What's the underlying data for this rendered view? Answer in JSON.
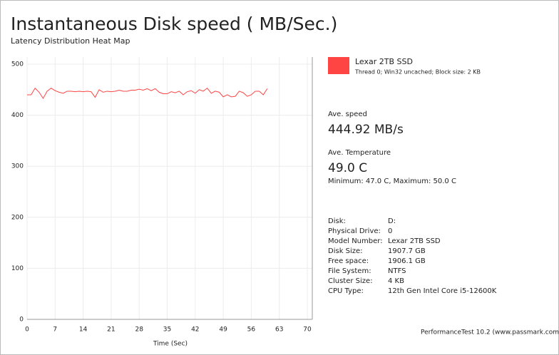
{
  "chart_data": {
    "type": "line",
    "title": "Instantaneous Disk speed ( MB/Sec.)",
    "subtitle": "Latency Distribution Heat Map",
    "x_label": "Time (Sec)",
    "x": [
      0,
      1,
      2,
      3,
      4,
      5,
      6,
      7,
      8,
      9,
      10,
      11,
      12,
      13,
      14,
      15,
      16,
      17,
      18,
      19,
      20,
      21,
      22,
      23,
      24,
      25,
      26,
      27,
      28,
      29,
      30,
      31,
      32,
      33,
      34,
      35,
      36,
      37,
      38,
      39,
      40,
      41,
      42,
      43,
      44,
      45,
      46,
      47,
      48,
      49,
      50,
      51,
      52,
      53,
      54,
      55,
      56,
      57,
      58,
      59,
      60
    ],
    "series": [
      {
        "name": "Lexar 2TB SSD",
        "color": "#ff4444",
        "values": [
          440,
          440,
          453,
          445,
          433,
          447,
          453,
          448,
          445,
          443,
          447,
          447,
          446,
          447,
          446,
          447,
          446,
          435,
          450,
          445,
          447,
          446,
          447,
          449,
          447,
          447,
          449,
          449,
          451,
          449,
          452,
          448,
          452,
          445,
          442,
          442,
          446,
          444,
          447,
          440,
          446,
          448,
          443,
          450,
          447,
          453,
          443,
          447,
          445,
          436,
          440,
          436,
          437,
          447,
          444,
          437,
          440,
          447,
          447,
          440,
          452
        ]
      }
    ],
    "xlim": [
      0,
      70
    ],
    "xticks": [
      0,
      7,
      14,
      21,
      28,
      35,
      42,
      49,
      56,
      63,
      70
    ],
    "ylim": [
      0,
      500
    ],
    "yticks": [
      0,
      100,
      200,
      300,
      400,
      500
    ],
    "grid": true
  },
  "panel": {
    "detail": "Thread 0; Win32 uncached; Block size: 2 KB",
    "speed_label": "Ave. speed",
    "speed_value": "444.92 MB/s",
    "temp_label": "Ave. Temperature",
    "temp_value": "49.0 C",
    "temp_range": "Minimum: 47.0 C, Maximum: 50.0 C",
    "info": [
      [
        "Disk:",
        "D:"
      ],
      [
        "Physical Drive:",
        "0"
      ],
      [
        "Model Number:",
        "Lexar 2TB SSD"
      ],
      [
        "Disk Size:",
        "1907.7 GB"
      ],
      [
        "Free space:",
        "1906.1 GB"
      ],
      [
        "File System:",
        "NTFS"
      ],
      [
        "Cluster Size:",
        "4 KB"
      ],
      [
        "CPU Type:",
        "12th Gen Intel Core i5-12600K"
      ]
    ]
  },
  "footer": "PerformanceTest 10.2 (www.passmark.com)"
}
